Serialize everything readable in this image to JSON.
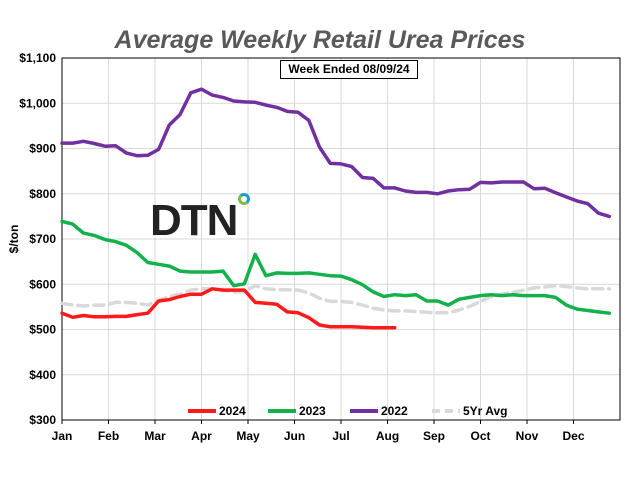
{
  "chart_data": {
    "type": "line",
    "title": "Average Weekly Retail Urea Prices",
    "subtitle": "Week Ended 08/09/24",
    "logo_text": "DTN",
    "ylabel": "$/ton",
    "xlabel": "",
    "x_unit": "week of year",
    "xlim": [
      1,
      53
    ],
    "ylim": [
      300,
      1100
    ],
    "yticks": [
      300,
      400,
      500,
      600,
      700,
      800,
      900,
      1000,
      1100
    ],
    "ytick_labels": [
      "$300",
      "$400",
      "$500",
      "$600",
      "$700",
      "$800",
      "$900",
      "$1,000",
      "$1,100"
    ],
    "month_labels": [
      "Jan",
      "Feb",
      "Mar",
      "Apr",
      "May",
      "Jun",
      "Jul",
      "Aug",
      "Sep",
      "Oct",
      "Nov",
      "Dec"
    ],
    "grid": true,
    "legend_position": "bottom",
    "series": [
      {
        "name": "2024",
        "color": "#ff1a1a",
        "dash": false,
        "values": [
          536,
          527,
          531,
          528,
          528,
          529,
          529,
          533,
          536,
          563,
          566,
          573,
          578,
          578,
          590,
          587,
          587,
          587,
          560,
          558,
          556,
          539,
          537,
          526,
          510,
          506,
          506,
          506,
          505,
          504,
          504,
          504
        ]
      },
      {
        "name": "2023",
        "color": "#13b04b",
        "dash": false,
        "values": [
          739,
          733,
          713,
          708,
          699,
          694,
          686,
          670,
          648,
          644,
          640,
          629,
          627,
          627,
          627,
          629,
          597,
          601,
          666,
          619,
          625,
          624,
          624,
          625,
          622,
          619,
          618,
          610,
          599,
          583,
          573,
          577,
          575,
          577,
          563,
          563,
          554,
          567,
          571,
          575,
          577,
          575,
          577,
          575,
          575,
          575,
          571,
          554,
          545,
          542,
          539,
          536
        ]
      },
      {
        "name": "2022",
        "color": "#7030a0",
        "dash": false,
        "values": [
          912,
          912,
          916,
          911,
          905,
          906,
          890,
          884,
          885,
          898,
          952,
          975,
          1023,
          1031,
          1018,
          1013,
          1005,
          1003,
          1002,
          996,
          991,
          982,
          980,
          962,
          903,
          867,
          866,
          860,
          836,
          834,
          813,
          813,
          806,
          803,
          803,
          800,
          806,
          809,
          810,
          825,
          824,
          826,
          826,
          826,
          811,
          812,
          802,
          793,
          784,
          778,
          757,
          750
        ]
      },
      {
        "name": "5Yr Avg",
        "color": "#d9d9d9",
        "dash": true,
        "values": [
          558,
          554,
          552,
          554,
          554,
          560,
          560,
          558,
          554,
          564,
          573,
          578,
          587,
          590,
          590,
          587,
          583,
          583,
          597,
          590,
          588,
          588,
          587,
          581,
          569,
          562,
          562,
          560,
          554,
          547,
          543,
          541,
          541,
          540,
          538,
          537,
          537,
          543,
          551,
          562,
          573,
          578,
          582,
          587,
          592,
          594,
          597,
          595,
          592,
          590,
          590,
          590
        ]
      }
    ]
  }
}
